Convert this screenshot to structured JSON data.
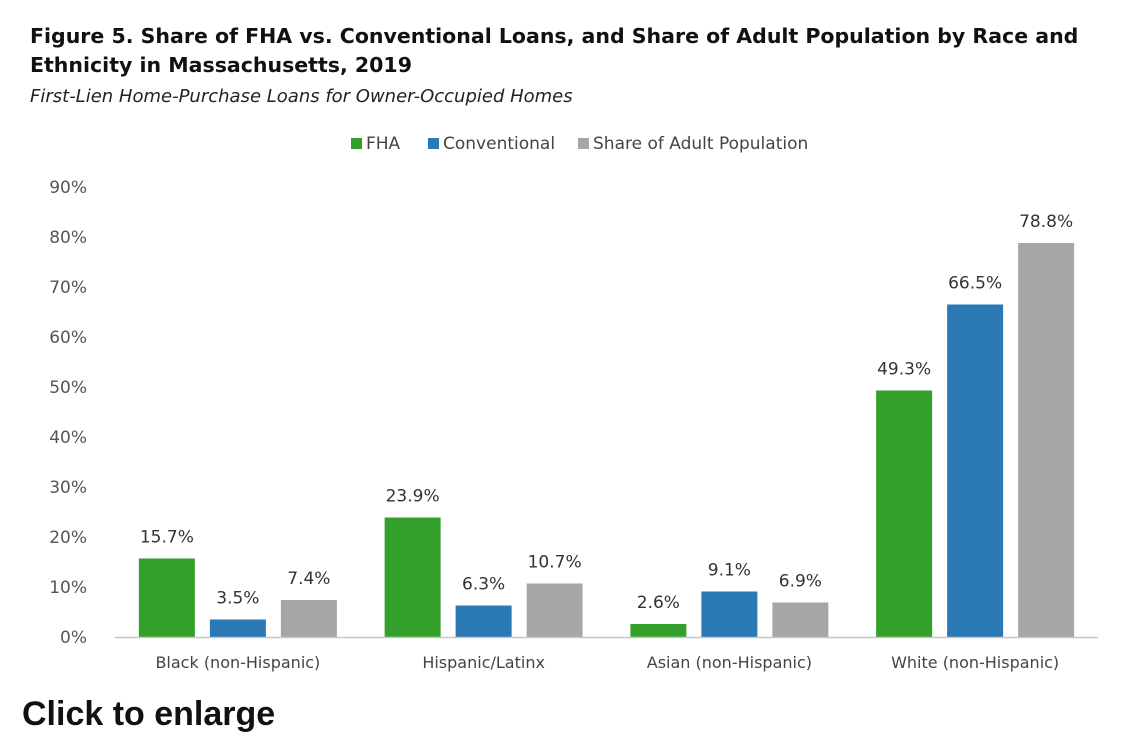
{
  "chart_data": {
    "type": "bar",
    "title": "Figure 5. Share of FHA vs. Conventional Loans, and Share of Adult Population by Race and Ethnicity in Massachusetts, 2019",
    "subtitle": "First-Lien Home-Purchase Loans for Owner-Occupied Homes",
    "categories": [
      "Black (non-Hispanic)",
      "Hispanic/Latinx",
      "Asian (non-Hispanic)",
      "White (non-Hispanic)"
    ],
    "series": [
      {
        "name": "FHA",
        "color": "#33a02c",
        "values": [
          15.7,
          23.9,
          2.6,
          49.3
        ],
        "labels": [
          "15.7%",
          "23.9%",
          "2.6%",
          "49.3%"
        ]
      },
      {
        "name": "Conventional",
        "color": "#2a78b4",
        "values": [
          3.5,
          6.3,
          9.1,
          66.5
        ],
        "labels": [
          "3.5%",
          "6.3%",
          "9.1%",
          "66.5%"
        ]
      },
      {
        "name": "Share of Adult Population",
        "color": "#a6a6a6",
        "values": [
          7.4,
          10.7,
          6.9,
          78.8
        ],
        "labels": [
          "7.4%",
          "10.7%",
          "6.9%",
          "78.8%"
        ]
      }
    ],
    "y_ticks": [
      {
        "value": 0,
        "label": "0%"
      },
      {
        "value": 10,
        "label": "10%"
      },
      {
        "value": 20,
        "label": "20%"
      },
      {
        "value": 30,
        "label": "30%"
      },
      {
        "value": 40,
        "label": "40%"
      },
      {
        "value": 50,
        "label": "50%"
      },
      {
        "value": 60,
        "label": "60%"
      },
      {
        "value": 70,
        "label": "70%"
      },
      {
        "value": 80,
        "label": "80%"
      },
      {
        "value": 90,
        "label": "90%"
      }
    ],
    "ylim": [
      0,
      90
    ],
    "grid": false,
    "legend_position": "top-center"
  },
  "link": {
    "label": "Click to enlarge"
  }
}
